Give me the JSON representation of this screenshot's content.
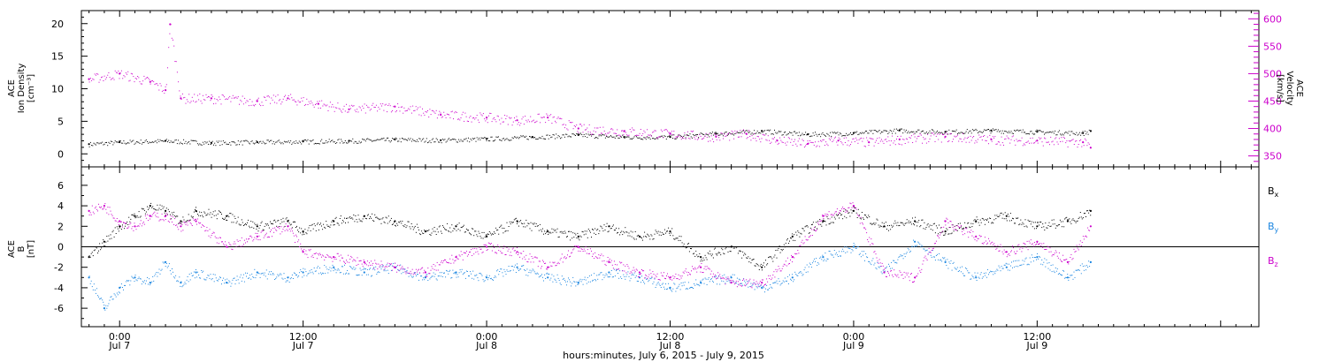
{
  "chart_data": [
    {
      "type": "scatter",
      "panel": "top",
      "ylabel_lines": [
        "ACE",
        "Ion Density",
        "[cm⁻³]"
      ],
      "ylabel_right_lines": [
        "ACE",
        "Velocity",
        "[km/s]"
      ],
      "ylim": [
        -2,
        22
      ],
      "ylim_right": [
        330,
        615
      ],
      "yticks": [
        0,
        5,
        10,
        15,
        20
      ],
      "yticks_right": [
        350,
        400,
        450,
        500,
        550,
        600
      ],
      "series": [
        {
          "name": "density",
          "color": "#000000",
          "axis": "left",
          "x_hours": [
            -2,
            0,
            3,
            6,
            9,
            12,
            15,
            18,
            21,
            24,
            27,
            30,
            33,
            36,
            39,
            42,
            45,
            48,
            51,
            54,
            57,
            60,
            63,
            63.5
          ],
          "values": [
            1.5,
            1.8,
            2.0,
            1.7,
            1.8,
            1.9,
            2.0,
            2.2,
            2.1,
            2.3,
            2.6,
            2.9,
            2.6,
            2.6,
            3.1,
            3.5,
            3.0,
            3.2,
            3.6,
            3.4,
            3.6,
            3.4,
            3.2,
            3.5
          ]
        },
        {
          "name": "velocity",
          "color": "#cc00cc",
          "axis": "right",
          "x_hours": [
            -2,
            0,
            2,
            3,
            3.3,
            4,
            6,
            9,
            11,
            13,
            15,
            18,
            21,
            24,
            26,
            28,
            30,
            33,
            36,
            39,
            41,
            43,
            45,
            47,
            49,
            51,
            54,
            57,
            60,
            63,
            63.5
          ],
          "values": [
            490,
            500,
            485,
            470,
            590,
            455,
            455,
            450,
            455,
            445,
            435,
            440,
            425,
            420,
            415,
            420,
            400,
            395,
            390,
            385,
            390,
            378,
            372,
            378,
            375,
            380,
            385,
            380,
            378,
            375,
            365
          ]
        }
      ]
    },
    {
      "type": "scatter",
      "panel": "bottom",
      "ylabel_lines": [
        "ACE",
        "B",
        "[nT]"
      ],
      "ylim": [
        -7.8,
        7.8
      ],
      "yticks": [
        -6,
        -4,
        -2,
        0,
        2,
        4,
        6
      ],
      "series": [
        {
          "name": "Bx",
          "color": "#000000",
          "x_hours": [
            -2,
            -1,
            0,
            1,
            2,
            3,
            4,
            5,
            7,
            9,
            11,
            12,
            14,
            16,
            18,
            20,
            22,
            24,
            26,
            28,
            30,
            32,
            34,
            36,
            38,
            40,
            42,
            44,
            46,
            48,
            50,
            52,
            54,
            56,
            58,
            60,
            62,
            63.5
          ],
          "values": [
            -1,
            0.5,
            2,
            3,
            4,
            3.5,
            2.5,
            3.5,
            3,
            2,
            2.5,
            1.5,
            2.5,
            3,
            2.5,
            1.5,
            2,
            1,
            2.5,
            1.5,
            1,
            2,
            1,
            1.5,
            -1,
            0,
            -2,
            1,
            2.5,
            3.5,
            2,
            2.5,
            1.5,
            2.5,
            3,
            2,
            2.5,
            3.5
          ]
        },
        {
          "name": "By",
          "color": "#1a85e0",
          "x_hours": [
            -2,
            -1,
            0,
            1,
            2,
            3,
            4,
            5,
            7,
            9,
            11,
            12,
            14,
            16,
            18,
            20,
            22,
            24,
            26,
            28,
            30,
            32,
            34,
            36,
            38,
            40,
            42,
            44,
            46,
            48,
            50,
            52,
            54,
            56,
            58,
            60,
            62,
            63.5
          ],
          "values": [
            -3,
            -6,
            -4,
            -3,
            -3.5,
            -1.5,
            -3.5,
            -2.5,
            -3.5,
            -2.5,
            -3,
            -2.5,
            -2,
            -2.5,
            -2,
            -3,
            -2.5,
            -3,
            -2,
            -3,
            -3.5,
            -2.5,
            -3,
            -4,
            -3.5,
            -3,
            -4,
            -3,
            -1,
            0,
            -2.5,
            0.5,
            -1.5,
            -3,
            -2,
            -1,
            -3,
            -1.5
          ]
        },
        {
          "name": "Bz",
          "color": "#cc00cc",
          "x_hours": [
            -2,
            -1,
            0,
            1,
            2,
            3,
            4,
            5,
            7,
            9,
            11,
            12,
            14,
            16,
            18,
            20,
            22,
            24,
            26,
            28,
            30,
            32,
            34,
            36,
            38,
            40,
            42,
            44,
            46,
            48,
            50,
            52,
            54,
            56,
            58,
            60,
            62,
            63.5
          ],
          "values": [
            3.5,
            4,
            2.5,
            2,
            3,
            3,
            2,
            2.5,
            0,
            1,
            2,
            -0.5,
            -1,
            -1.5,
            -2,
            -2.5,
            -1,
            0,
            -0.5,
            -2,
            0,
            -1.5,
            -2.5,
            -3,
            -2,
            -3.5,
            -3.5,
            -1,
            3,
            4,
            -2.5,
            -3,
            2.5,
            1,
            -0.5,
            0.5,
            -1.5,
            2
          ]
        }
      ],
      "legend": [
        {
          "label": "B",
          "sub": "x",
          "color": "#000000"
        },
        {
          "label": "B",
          "sub": "y",
          "color": "#1a85e0"
        },
        {
          "label": "B",
          "sub": "z",
          "color": "#cc00cc"
        }
      ]
    }
  ],
  "x_axis": {
    "range_hours": [
      -2.5,
      74.5
    ],
    "ticks": [
      {
        "h": 0,
        "time": "0:00",
        "day": "Jul 7"
      },
      {
        "h": 12,
        "time": "12:00",
        "day": "Jul 7"
      },
      {
        "h": 24,
        "time": "0:00",
        "day": "Jul 8"
      },
      {
        "h": 36,
        "time": "12:00",
        "day": "Jul 8"
      },
      {
        "h": 48,
        "time": "0:00",
        "day": "Jul 9"
      },
      {
        "h": 60,
        "time": "12:00",
        "day": "Jul 9"
      }
    ],
    "title": "hours:minutes, July  6, 2015 - July  9, 2015"
  }
}
